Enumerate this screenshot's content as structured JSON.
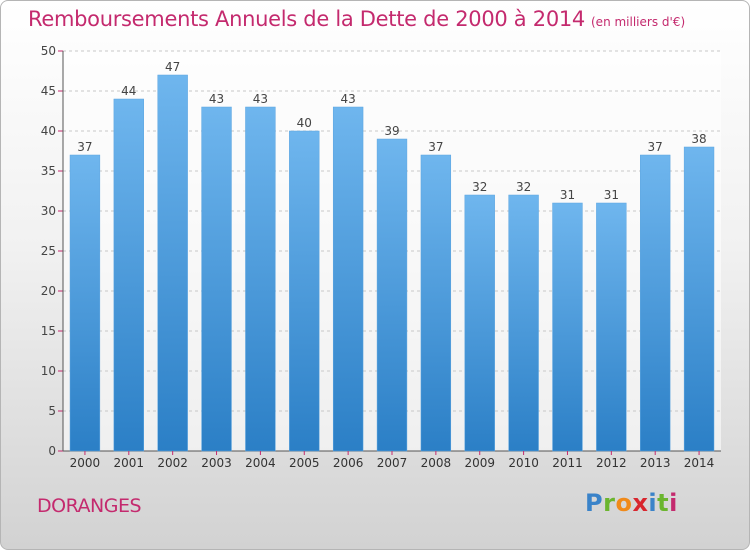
{
  "chart_data": {
    "type": "bar",
    "title": "Remboursements Annuels de la Dette de 2000 à 2014",
    "unit_label": "(en milliers d'€)",
    "xlabel": "",
    "ylabel": "",
    "categories": [
      "2000",
      "2001",
      "2002",
      "2003",
      "2004",
      "2005",
      "2006",
      "2007",
      "2008",
      "2009",
      "2010",
      "2011",
      "2012",
      "2013",
      "2014"
    ],
    "values": [
      37,
      44,
      47,
      43,
      43,
      40,
      43,
      39,
      37,
      32,
      32,
      31,
      31,
      37,
      38
    ],
    "ylim": [
      0,
      50
    ],
    "yticks": [
      0,
      5,
      10,
      15,
      20,
      25,
      30,
      35,
      40,
      45,
      50
    ],
    "grid": "horizontal-dashed"
  },
  "footer": {
    "commune": "DORANGES",
    "logo_text": "Proxiti"
  },
  "colors": {
    "title": "#c42a6e",
    "bar_top": "#6fb6ee",
    "bar_bottom": "#2b7fc6",
    "axis_red": "#c42a6e",
    "logo": [
      "#3a83c9",
      "#6bb52f",
      "#f08a1a",
      "#d8262e",
      "#3a83c9",
      "#6bb52f",
      "#c42a6e"
    ]
  }
}
